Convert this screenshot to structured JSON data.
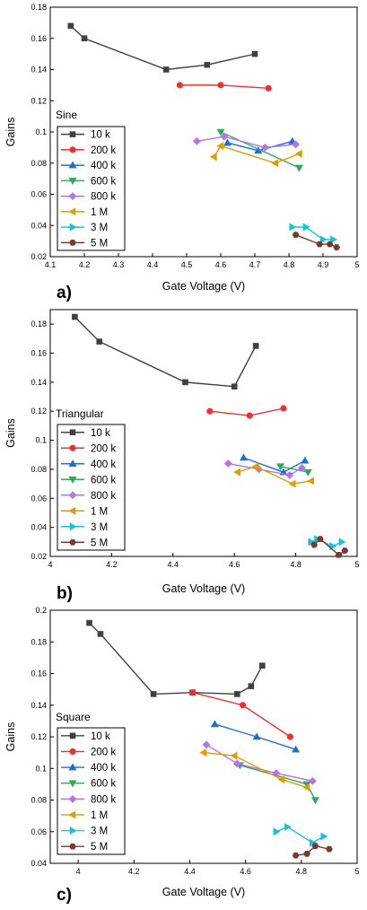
{
  "chart_data": [
    {
      "type": "line",
      "panel": "a)",
      "waveform": "Sine",
      "xlabel": "Gate Voltage (V)",
      "ylabel": "Gains",
      "xlim": [
        4.1,
        5.0
      ],
      "ylim": [
        0.02,
        0.18
      ],
      "xticks": [
        "4.1",
        "4.2",
        "4.3",
        "4.4",
        "4.5",
        "4.6",
        "4.7",
        "4.8",
        "4.9",
        "5"
      ],
      "yticks": [
        "0.02",
        "0.04",
        "0.06",
        "0.08",
        "0.1",
        "0.12",
        "0.14",
        "0.16",
        "0.18"
      ],
      "legend_placement": "left",
      "series": [
        {
          "name": "10 k",
          "color": "#404040",
          "marker": "square",
          "x": [
            4.16,
            4.2,
            4.44,
            4.56,
            4.7
          ],
          "y": [
            0.168,
            0.16,
            0.14,
            0.143,
            0.15
          ]
        },
        {
          "name": "200 k",
          "color": "#ee3030",
          "marker": "circle",
          "x": [
            4.48,
            4.6,
            4.74
          ],
          "y": [
            0.13,
            0.13,
            0.128
          ]
        },
        {
          "name": "400 k",
          "color": "#1f6fd1",
          "marker": "triangle-up",
          "x": [
            4.62,
            4.71,
            4.81
          ],
          "y": [
            0.093,
            0.088,
            0.094
          ]
        },
        {
          "name": "600 k",
          "color": "#2eaa5a",
          "marker": "triangle-down",
          "x": [
            4.6,
            4.83
          ],
          "y": [
            0.1,
            0.077
          ]
        },
        {
          "name": "800 k",
          "color": "#b573e6",
          "marker": "diamond",
          "x": [
            4.53,
            4.61,
            4.73,
            4.82
          ],
          "y": [
            0.094,
            0.097,
            0.09,
            0.092
          ]
        },
        {
          "name": "1 M",
          "color": "#d9a000",
          "marker": "triangle-left",
          "x": [
            4.58,
            4.6,
            4.76,
            4.83
          ],
          "y": [
            0.084,
            0.091,
            0.08,
            0.086
          ]
        },
        {
          "name": "3 M",
          "color": "#17c3d6",
          "marker": "triangle-right",
          "x": [
            4.81,
            4.85,
            4.9,
            4.93
          ],
          "y": [
            0.039,
            0.039,
            0.031,
            0.031
          ]
        },
        {
          "name": "5 M",
          "color": "#7a3b2e",
          "marker": "hexagon",
          "x": [
            4.82,
            4.89,
            4.92,
            4.94
          ],
          "y": [
            0.034,
            0.028,
            0.028,
            0.026
          ]
        }
      ]
    },
    {
      "type": "line",
      "panel": "b)",
      "waveform": "Triangular",
      "xlabel": "Gate Voltage (V)",
      "ylabel": "Gains",
      "xlim": [
        4.0,
        5.0
      ],
      "ylim": [
        0.02,
        0.19
      ],
      "xticks": [
        "4",
        "4.2",
        "4.4",
        "4.6",
        "4.8",
        "5"
      ],
      "yticks": [
        "0.02",
        "0.04",
        "0.06",
        "0.08",
        "0.1",
        "0.12",
        "0.14",
        "0.16",
        "0.18"
      ],
      "legend_placement": "left",
      "series": [
        {
          "name": "10 k",
          "color": "#404040",
          "marker": "square",
          "x": [
            4.08,
            4.16,
            4.44,
            4.6,
            4.67
          ],
          "y": [
            0.185,
            0.168,
            0.14,
            0.137,
            0.165
          ]
        },
        {
          "name": "200 k",
          "color": "#ee3030",
          "marker": "circle",
          "x": [
            4.52,
            4.65,
            4.76
          ],
          "y": [
            0.12,
            0.117,
            0.122
          ]
        },
        {
          "name": "400 k",
          "color": "#1f6fd1",
          "marker": "triangle-up",
          "x": [
            4.63,
            4.76,
            4.83
          ],
          "y": [
            0.088,
            0.078,
            0.086
          ]
        },
        {
          "name": "600 k",
          "color": "#2eaa5a",
          "marker": "triangle-down",
          "x": [
            4.75,
            4.84
          ],
          "y": [
            0.082,
            0.078
          ]
        },
        {
          "name": "800 k",
          "color": "#b573e6",
          "marker": "diamond",
          "x": [
            4.58,
            4.68,
            4.78,
            4.82
          ],
          "y": [
            0.084,
            0.08,
            0.076,
            0.081
          ]
        },
        {
          "name": "1 M",
          "color": "#d9a000",
          "marker": "triangle-left",
          "x": [
            4.61,
            4.67,
            4.79,
            4.85
          ],
          "y": [
            0.078,
            0.082,
            0.07,
            0.072
          ]
        },
        {
          "name": "3 M",
          "color": "#17c3d6",
          "marker": "triangle-right",
          "x": [
            4.85,
            4.87,
            4.92,
            4.95
          ],
          "y": [
            0.03,
            0.032,
            0.027,
            0.03
          ]
        },
        {
          "name": "5 M",
          "color": "#7a3b2e",
          "marker": "hexagon",
          "x": [
            4.86,
            4.88,
            4.94,
            4.96
          ],
          "y": [
            0.028,
            0.032,
            0.021,
            0.024
          ]
        }
      ]
    },
    {
      "type": "line",
      "panel": "c)",
      "waveform": "Square",
      "xlabel": "Gate Voltage (V)",
      "ylabel": "Gains",
      "xlim": [
        3.9,
        5.0
      ],
      "ylim": [
        0.04,
        0.2
      ],
      "xticks": [
        "4",
        "4.2",
        "4.4",
        "4.6",
        "4.8",
        "5"
      ],
      "yticks": [
        "0.04",
        "0.06",
        "0.08",
        "0.1",
        "0.12",
        "0.14",
        "0.16",
        "0.18",
        "0.2"
      ],
      "legend_placement": "left",
      "series": [
        {
          "name": "10 k",
          "color": "#404040",
          "marker": "square",
          "x": [
            4.04,
            4.08,
            4.27,
            4.41,
            4.57,
            4.62,
            4.66
          ],
          "y": [
            0.192,
            0.185,
            0.147,
            0.148,
            0.147,
            0.152,
            0.165
          ]
        },
        {
          "name": "200 k",
          "color": "#ee3030",
          "marker": "circle",
          "x": [
            4.41,
            4.59,
            4.76
          ],
          "y": [
            0.148,
            0.14,
            0.12
          ]
        },
        {
          "name": "400 k",
          "color": "#1f6fd1",
          "marker": "triangle-up",
          "x": [
            4.49,
            4.64,
            4.78
          ],
          "y": [
            0.128,
            0.12,
            0.112
          ]
        },
        {
          "name": "600 k",
          "color": "#2eaa5a",
          "marker": "triangle-down",
          "x": [
            4.58,
            4.82,
            4.85
          ],
          "y": [
            0.102,
            0.09,
            0.08
          ]
        },
        {
          "name": "800 k",
          "color": "#b573e6",
          "marker": "diamond",
          "x": [
            4.46,
            4.57,
            4.71,
            4.84
          ],
          "y": [
            0.115,
            0.103,
            0.097,
            0.092
          ]
        },
        {
          "name": "1 M",
          "color": "#d9a000",
          "marker": "triangle-left",
          "x": [
            4.45,
            4.56,
            4.73,
            4.82
          ],
          "y": [
            0.11,
            0.108,
            0.093,
            0.088
          ]
        },
        {
          "name": "3 M",
          "color": "#17c3d6",
          "marker": "triangle-right",
          "x": [
            4.71,
            4.75,
            4.84,
            4.88
          ],
          "y": [
            0.06,
            0.063,
            0.053,
            0.057
          ]
        },
        {
          "name": "5 M",
          "color": "#7a3b2e",
          "marker": "hexagon",
          "x": [
            4.78,
            4.82,
            4.85,
            4.9
          ],
          "y": [
            0.045,
            0.046,
            0.051,
            0.049
          ]
        }
      ]
    }
  ]
}
